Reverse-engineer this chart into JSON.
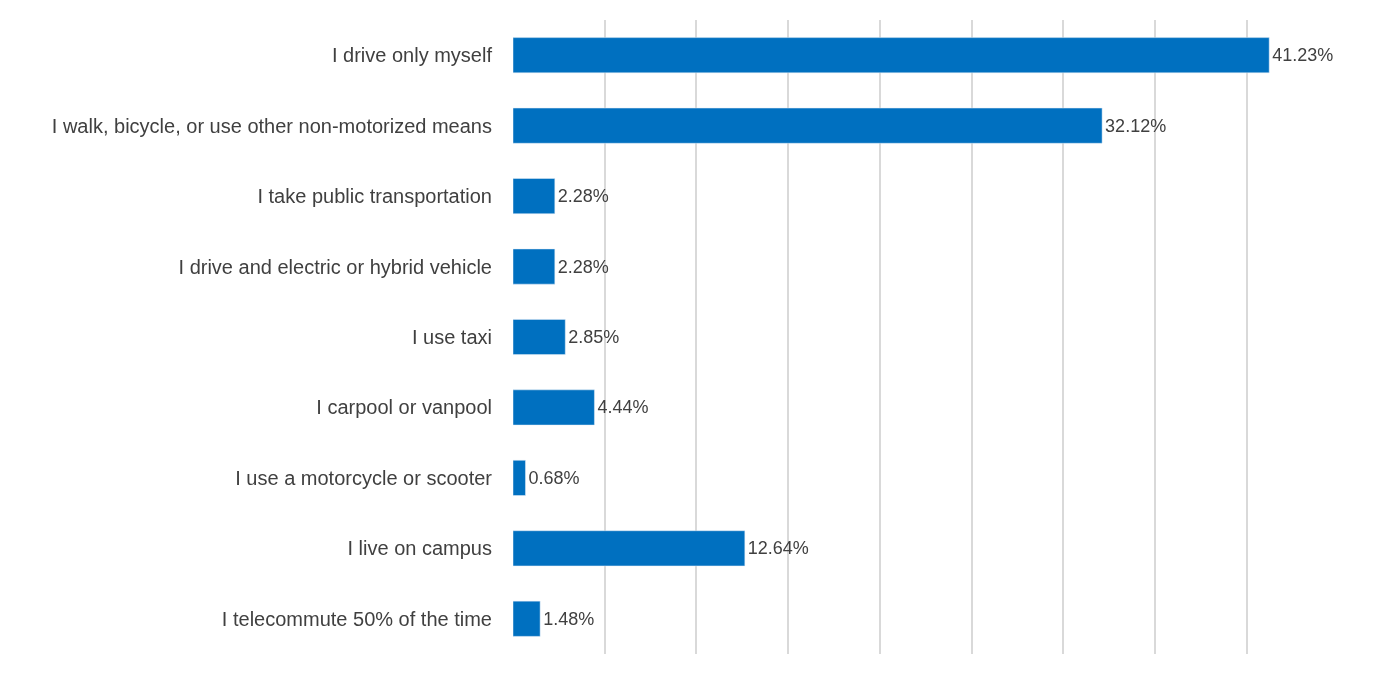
{
  "chart_data": {
    "type": "bar",
    "orientation": "horizontal",
    "categories": [
      "I drive only myself",
      "I walk, bicycle, or use other non-motorized means",
      "I take public transportation",
      "I drive and electric or hybrid vehicle",
      "I use taxi",
      "I carpool or vanpool",
      "I use a motorcycle or scooter",
      "I live on campus",
      "I telecommute 50% of the time"
    ],
    "values": [
      41.23,
      32.12,
      2.28,
      2.28,
      2.85,
      4.44,
      0.68,
      12.64,
      1.48
    ],
    "value_labels": [
      "41.23%",
      "32.12%",
      "2.28%",
      "2.28%",
      "2.85%",
      "4.44%",
      "0.68%",
      "12.64%",
      "1.48%"
    ],
    "color": "#0070c0",
    "grid": "x",
    "tick_labels": "y"
  }
}
